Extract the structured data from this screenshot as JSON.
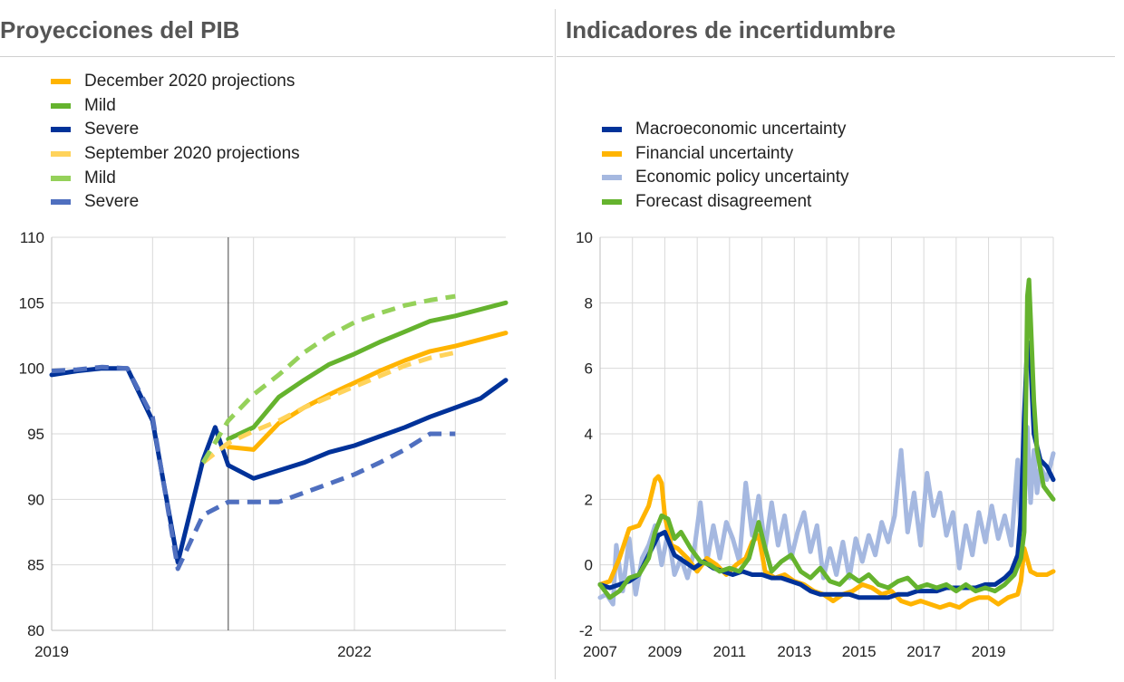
{
  "panels": {
    "left_title": "Proyecciones del PIB",
    "right_title": "Indicadores de incertidumbre"
  },
  "chart_data": [
    {
      "type": "line",
      "title": "Proyecciones del PIB",
      "xlabel": "",
      "ylabel": "",
      "ylim": [
        80,
        110
      ],
      "yticks": [
        "80",
        "85",
        "90",
        "95",
        "100",
        "105",
        "110"
      ],
      "xticks": [
        {
          "label": "2019",
          "x": 2019.0
        },
        {
          "label": "2022",
          "x": 2022.0
        }
      ],
      "xlim": [
        2019.0,
        2023.5
      ],
      "vertical_line_x": 2020.75,
      "grid": true,
      "legend": "top-left",
      "series": [
        {
          "name": "December 2020 projections",
          "color": "#FFB400",
          "dash": false,
          "x": [
            2020.75,
            2021.0,
            2021.25,
            2021.5,
            2021.75,
            2022.0,
            2022.25,
            2022.5,
            2022.75,
            2023.0,
            2023.25,
            2023.5
          ],
          "values": [
            94.0,
            93.8,
            95.8,
            97.0,
            98.0,
            98.9,
            99.8,
            100.6,
            101.3,
            101.7,
            102.2,
            102.7
          ]
        },
        {
          "name": "Mild",
          "color": "#65B32E",
          "dash": false,
          "x": [
            2020.75,
            2021.0,
            2021.25,
            2021.5,
            2021.75,
            2022.0,
            2022.25,
            2022.5,
            2022.75,
            2023.0,
            2023.25,
            2023.5
          ],
          "values": [
            94.6,
            95.5,
            97.8,
            99.1,
            100.3,
            101.1,
            102.0,
            102.8,
            103.6,
            104.0,
            104.5,
            105.0
          ]
        },
        {
          "name": "Severe",
          "color": "#003299",
          "dash": false,
          "x": [
            2019.0,
            2019.25,
            2019.5,
            2019.75,
            2020.0,
            2020.25,
            2020.5,
            2020.62,
            2020.75,
            2021.0,
            2021.25,
            2021.5,
            2021.75,
            2022.0,
            2022.25,
            2022.5,
            2022.75,
            2023.0,
            2023.25,
            2023.5
          ],
          "values": [
            99.5,
            99.8,
            100.0,
            100.0,
            96.0,
            85.2,
            93.0,
            95.5,
            92.6,
            91.6,
            92.2,
            92.8,
            93.6,
            94.1,
            94.8,
            95.5,
            96.3,
            97.0,
            97.7,
            99.1
          ]
        },
        {
          "name": "September 2020 projections",
          "color": "#FFD35B",
          "dash": true,
          "x": [
            2020.5,
            2020.75,
            2021.0,
            2021.25,
            2021.5,
            2021.75,
            2022.0,
            2022.25,
            2022.5,
            2022.75,
            2023.0
          ],
          "values": [
            92.8,
            94.3,
            95.2,
            96.0,
            97.0,
            97.8,
            98.6,
            99.4,
            100.2,
            100.8,
            101.2
          ]
        },
        {
          "name": "Mild",
          "color": "#95D15A",
          "dash": true,
          "x": [
            2020.5,
            2020.75,
            2021.0,
            2021.25,
            2021.5,
            2021.75,
            2022.0,
            2022.25,
            2022.5,
            2022.75,
            2023.0
          ],
          "values": [
            92.8,
            96.0,
            98.0,
            99.5,
            101.2,
            102.5,
            103.5,
            104.2,
            104.8,
            105.2,
            105.5
          ]
        },
        {
          "name": "Severe",
          "color": "#4F6FBF",
          "dash": true,
          "x": [
            2019.0,
            2019.25,
            2019.5,
            2019.75,
            2020.0,
            2020.25,
            2020.5,
            2020.75,
            2021.0,
            2021.25,
            2021.5,
            2021.75,
            2022.0,
            2022.25,
            2022.5,
            2022.75,
            2023.0
          ],
          "values": [
            99.8,
            99.9,
            100.1,
            100.0,
            96.3,
            84.7,
            88.8,
            89.8,
            89.8,
            89.8,
            90.5,
            91.2,
            91.9,
            92.8,
            93.8,
            95.0,
            95.0
          ]
        }
      ]
    },
    {
      "type": "line",
      "title": "Indicadores de incertidumbre",
      "xlabel": "",
      "ylabel": "",
      "ylim": [
        -2,
        10
      ],
      "yticks": [
        "-2",
        "0",
        "2",
        "4",
        "6",
        "8",
        "10"
      ],
      "xticks": [
        {
          "label": "2007",
          "x": 2007
        },
        {
          "label": "2009",
          "x": 2009
        },
        {
          "label": "2011",
          "x": 2011
        },
        {
          "label": "2013",
          "x": 2013
        },
        {
          "label": "2015",
          "x": 2015
        },
        {
          "label": "2017",
          "x": 2017
        },
        {
          "label": "2019",
          "x": 2019
        }
      ],
      "xlim": [
        2007,
        2021.0
      ],
      "grid": true,
      "legend": "top-left",
      "series": [
        {
          "name": "Economic policy uncertainty",
          "color": "#A5B8E0",
          "x": [
            2007.0,
            2007.2,
            2007.4,
            2007.5,
            2007.7,
            2007.9,
            2008.1,
            2008.3,
            2008.5,
            2008.7,
            2008.9,
            2009.1,
            2009.3,
            2009.5,
            2009.7,
            2009.9,
            2010.1,
            2010.3,
            2010.5,
            2010.7,
            2010.9,
            2011.1,
            2011.3,
            2011.5,
            2011.7,
            2011.9,
            2012.1,
            2012.3,
            2012.5,
            2012.7,
            2012.9,
            2013.1,
            2013.3,
            2013.5,
            2013.7,
            2013.9,
            2014.1,
            2014.3,
            2014.5,
            2014.7,
            2014.9,
            2015.1,
            2015.3,
            2015.5,
            2015.7,
            2015.9,
            2016.1,
            2016.3,
            2016.5,
            2016.7,
            2016.9,
            2017.1,
            2017.3,
            2017.5,
            2017.7,
            2017.9,
            2018.1,
            2018.3,
            2018.5,
            2018.7,
            2018.9,
            2019.1,
            2019.3,
            2019.5,
            2019.7,
            2019.9,
            2020.0,
            2020.1,
            2020.2,
            2020.3,
            2020.4,
            2020.5,
            2020.6,
            2020.8,
            2021.0
          ],
          "values": [
            -1.0,
            -0.9,
            -1.2,
            0.6,
            -0.8,
            0.8,
            -0.9,
            0.2,
            0.6,
            1.2,
            0.0,
            1.0,
            -0.3,
            0.2,
            -0.4,
            0.4,
            1.9,
            0.1,
            1.2,
            0.2,
            1.3,
            0.8,
            0.1,
            2.5,
            0.9,
            2.1,
            0.5,
            1.9,
            0.6,
            1.5,
            0.2,
            1.0,
            1.6,
            0.4,
            1.2,
            -0.4,
            0.5,
            -0.3,
            0.7,
            -0.4,
            0.8,
            0.1,
            0.9,
            0.3,
            1.3,
            0.7,
            1.5,
            3.5,
            1.0,
            2.2,
            0.6,
            2.8,
            1.5,
            2.2,
            0.9,
            1.6,
            -0.1,
            1.2,
            0.3,
            1.6,
            0.7,
            1.8,
            0.8,
            1.5,
            0.6,
            3.2,
            0.7,
            1.5,
            4.2,
            1.9,
            3.5,
            2.2,
            3.0,
            2.6,
            3.4
          ]
        },
        {
          "name": "Financial uncertainty",
          "color": "#FFB400",
          "x": [
            2007.0,
            2007.3,
            2007.6,
            2007.9,
            2008.2,
            2008.5,
            2008.7,
            2008.8,
            2008.9,
            2009.0,
            2009.2,
            2009.4,
            2009.7,
            2010.0,
            2010.3,
            2010.6,
            2010.9,
            2011.2,
            2011.5,
            2011.7,
            2011.9,
            2012.1,
            2012.4,
            2012.7,
            2013.0,
            2013.3,
            2013.6,
            2013.9,
            2014.2,
            2014.5,
            2014.8,
            2015.1,
            2015.4,
            2015.7,
            2016.0,
            2016.3,
            2016.6,
            2016.9,
            2017.2,
            2017.5,
            2017.8,
            2018.1,
            2018.4,
            2018.7,
            2019.0,
            2019.3,
            2019.6,
            2019.9,
            2020.0,
            2020.1,
            2020.3,
            2020.5,
            2020.8,
            2021.0
          ],
          "values": [
            -0.6,
            -0.5,
            0.2,
            1.1,
            1.2,
            1.8,
            2.6,
            2.7,
            2.5,
            1.5,
            0.6,
            0.5,
            0.2,
            -0.2,
            0.2,
            0.0,
            -0.3,
            0.0,
            0.2,
            0.7,
            0.9,
            -0.2,
            -0.4,
            -0.3,
            -0.5,
            -0.6,
            -0.8,
            -0.9,
            -1.1,
            -0.9,
            -0.8,
            -0.6,
            -0.7,
            -0.9,
            -0.8,
            -1.1,
            -1.2,
            -1.1,
            -1.2,
            -1.3,
            -1.2,
            -1.3,
            -1.1,
            -1.0,
            -1.0,
            -1.2,
            -1.0,
            -0.9,
            -0.5,
            0.5,
            -0.2,
            -0.3,
            -0.3,
            -0.2
          ]
        },
        {
          "name": "Macroeconomic uncertainty",
          "color": "#003299",
          "x": [
            2007.0,
            2007.3,
            2007.6,
            2007.9,
            2008.2,
            2008.5,
            2008.8,
            2009.0,
            2009.3,
            2009.6,
            2009.9,
            2010.2,
            2010.5,
            2010.8,
            2011.1,
            2011.4,
            2011.7,
            2012.0,
            2012.3,
            2012.6,
            2012.9,
            2013.2,
            2013.5,
            2013.8,
            2014.1,
            2014.4,
            2014.7,
            2015.0,
            2015.3,
            2015.6,
            2015.9,
            2016.2,
            2016.5,
            2016.8,
            2017.1,
            2017.4,
            2017.7,
            2018.0,
            2018.3,
            2018.6,
            2018.9,
            2019.2,
            2019.5,
            2019.7,
            2019.9,
            2020.0,
            2020.1,
            2020.2,
            2020.3,
            2020.4,
            2020.6,
            2020.8,
            2021.0
          ],
          "values": [
            -0.6,
            -0.7,
            -0.6,
            -0.5,
            -0.3,
            0.3,
            0.9,
            1.0,
            0.3,
            0.1,
            -0.1,
            0.1,
            -0.1,
            -0.2,
            -0.3,
            -0.2,
            -0.3,
            -0.3,
            -0.4,
            -0.4,
            -0.5,
            -0.6,
            -0.8,
            -0.9,
            -0.9,
            -0.9,
            -0.9,
            -1.0,
            -1.0,
            -1.0,
            -1.0,
            -0.9,
            -0.9,
            -0.8,
            -0.8,
            -0.8,
            -0.7,
            -0.7,
            -0.7,
            -0.7,
            -0.6,
            -0.6,
            -0.4,
            -0.2,
            0.3,
            1.5,
            4.5,
            6.8,
            6.2,
            4.0,
            3.2,
            3.0,
            2.6
          ]
        },
        {
          "name": "Forecast disagreement",
          "color": "#65B32E",
          "x": [
            2007.0,
            2007.3,
            2007.6,
            2007.9,
            2008.2,
            2008.5,
            2008.7,
            2008.9,
            2009.1,
            2009.3,
            2009.5,
            2009.8,
            2010.1,
            2010.4,
            2010.7,
            2011.0,
            2011.3,
            2011.6,
            2011.9,
            2012.1,
            2012.3,
            2012.6,
            2012.9,
            2013.2,
            2013.5,
            2013.8,
            2014.1,
            2014.4,
            2014.7,
            2015.0,
            2015.3,
            2015.6,
            2015.9,
            2016.2,
            2016.5,
            2016.8,
            2017.1,
            2017.4,
            2017.7,
            2018.0,
            2018.3,
            2018.6,
            2018.9,
            2019.2,
            2019.5,
            2019.8,
            2020.0,
            2020.1,
            2020.2,
            2020.25,
            2020.3,
            2020.4,
            2020.5,
            2020.7,
            2021.0
          ],
          "values": [
            -0.6,
            -1.0,
            -0.8,
            -0.4,
            -0.3,
            0.2,
            1.0,
            1.5,
            1.4,
            0.8,
            1.0,
            0.5,
            0.1,
            0.0,
            -0.2,
            -0.1,
            -0.2,
            0.2,
            1.3,
            0.5,
            -0.2,
            0.1,
            0.3,
            -0.2,
            -0.4,
            -0.1,
            -0.5,
            -0.6,
            -0.3,
            -0.5,
            -0.3,
            -0.6,
            -0.7,
            -0.5,
            -0.4,
            -0.7,
            -0.6,
            -0.7,
            -0.6,
            -0.8,
            -0.6,
            -0.8,
            -0.7,
            -0.8,
            -0.6,
            -0.3,
            0.2,
            1.0,
            8.2,
            8.7,
            7.5,
            5.0,
            3.5,
            2.4,
            2.0
          ]
        }
      ],
      "legend_order": [
        "Macroeconomic uncertainty",
        "Financial uncertainty",
        "Economic policy uncertainty",
        "Forecast disagreement"
      ]
    }
  ]
}
